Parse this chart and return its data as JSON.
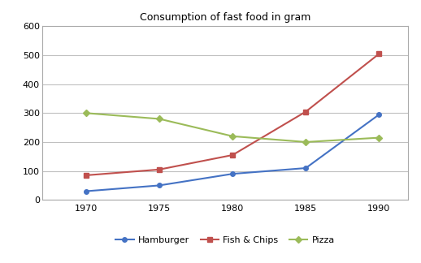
{
  "title": "Consumption of fast food in gram",
  "years": [
    1970,
    1975,
    1980,
    1985,
    1990
  ],
  "series": {
    "Hamburger": {
      "values": [
        30,
        50,
        90,
        110,
        295
      ],
      "color": "#4472C4",
      "marker": "o"
    },
    "Fish & Chips": {
      "values": [
        85,
        105,
        155,
        305,
        505
      ],
      "color": "#C0504D",
      "marker": "s"
    },
    "Pizza": {
      "values": [
        300,
        280,
        220,
        200,
        215
      ],
      "color": "#9BBB59",
      "marker": "D"
    }
  },
  "ylim": [
    0,
    600
  ],
  "yticks": [
    0,
    100,
    200,
    300,
    400,
    500,
    600
  ],
  "xticks": [
    1970,
    1975,
    1980,
    1985,
    1990
  ],
  "bg_color": "#FFFFFF",
  "plot_bg": "#FFFFFF",
  "grid_color": "#C0C0C0",
  "legend_order": [
    "Hamburger",
    "Fish & Chips",
    "Pizza"
  ],
  "border_color": "#AAAAAA"
}
